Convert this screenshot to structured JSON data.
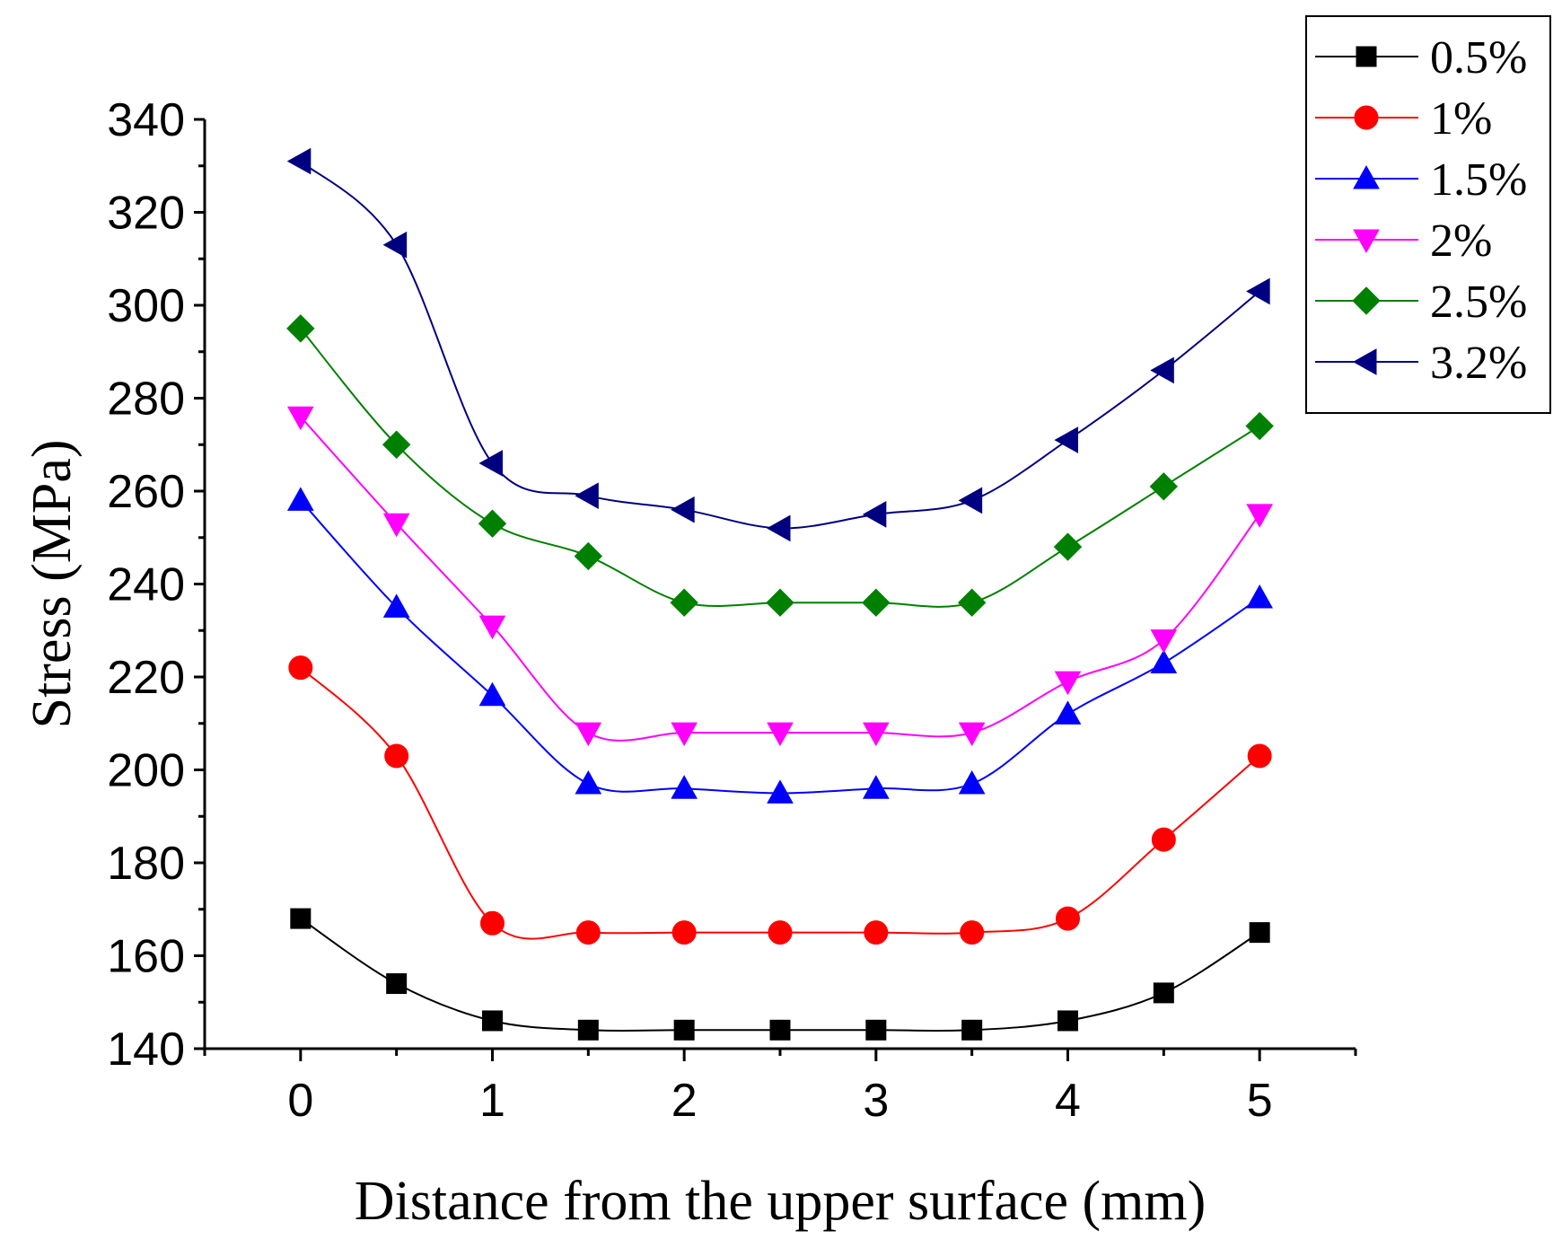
{
  "chart_data": {
    "type": "line",
    "title": "",
    "xlabel": "Distance from the upper surface (mm)",
    "ylabel": "Stress (MPa)",
    "xlim": [
      -0.5,
      5.5
    ],
    "ylim": [
      140,
      340
    ],
    "xticks": [
      0,
      1,
      2,
      3,
      4,
      5
    ],
    "yticks": [
      140,
      160,
      180,
      200,
      220,
      240,
      260,
      280,
      300,
      320,
      340
    ],
    "grid": false,
    "legend_position": "top-right",
    "x": [
      0,
      0.5,
      1,
      1.5,
      2,
      2.5,
      3,
      3.5,
      4,
      4.5,
      5
    ],
    "series": [
      {
        "name": "0.5%",
        "color": "#000000",
        "marker": "square",
        "values": [
          168,
          154,
          146,
          144,
          144,
          144,
          144,
          144,
          146,
          152,
          165
        ]
      },
      {
        "name": "1%",
        "color": "#ff0000",
        "marker": "circle",
        "values": [
          222,
          203,
          167,
          165,
          165,
          165,
          165,
          165,
          168,
          185,
          203
        ]
      },
      {
        "name": "1.5%",
        "color": "#0000ff",
        "marker": "triangle-up",
        "values": [
          258,
          235,
          216,
          197,
          196,
          195,
          196,
          197,
          212,
          223,
          237
        ]
      },
      {
        "name": "2%",
        "color": "#ff00ff",
        "marker": "triangle-down",
        "values": [
          276,
          253,
          231,
          208,
          208,
          208,
          208,
          208,
          219,
          228,
          255
        ]
      },
      {
        "name": "2.5%",
        "color": "#008000",
        "marker": "diamond",
        "values": [
          295,
          270,
          253,
          246,
          236,
          236,
          236,
          236,
          248,
          261,
          274
        ]
      },
      {
        "name": "3.2%",
        "color": "#000080",
        "marker": "triangle-left",
        "values": [
          331,
          313,
          266,
          259,
          256,
          252,
          255,
          258,
          271,
          286,
          303
        ]
      }
    ]
  }
}
